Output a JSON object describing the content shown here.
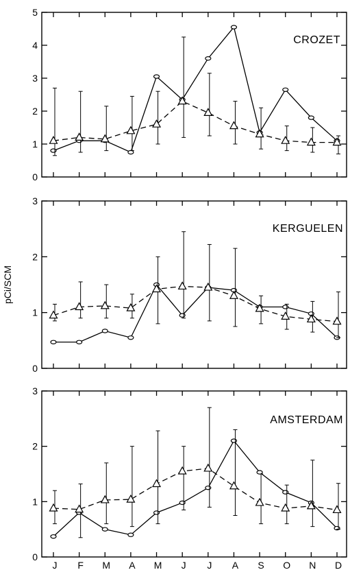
{
  "chart_data": [
    {
      "type": "line",
      "panel_label": "CROZET",
      "categories": [
        "J",
        "F",
        "M",
        "A",
        "M",
        "J",
        "J",
        "A",
        "S",
        "O",
        "N",
        "D"
      ],
      "ylim": [
        0,
        5
      ],
      "yticks": [
        0,
        1,
        2,
        3,
        4,
        5
      ],
      "series": [
        {
          "style": "solid-circle",
          "values": [
            0.8,
            1.1,
            1.1,
            0.75,
            3.05,
            2.35,
            3.6,
            4.55,
            1.35,
            2.65,
            1.8,
            1.1
          ]
        },
        {
          "style": "dashed-triangle",
          "values": [
            1.1,
            1.2,
            1.15,
            1.4,
            1.6,
            2.3,
            1.95,
            1.55,
            1.3,
            1.1,
            1.05,
            1.05
          ],
          "err_low": [
            0.65,
            0.75,
            0.8,
            0.8,
            1.0,
            1.2,
            1.25,
            1.0,
            0.85,
            0.8,
            0.75,
            0.7
          ],
          "err_high": [
            2.7,
            2.6,
            2.15,
            2.45,
            2.6,
            4.25,
            3.15,
            2.3,
            2.1,
            1.55,
            1.5,
            1.25
          ]
        }
      ]
    },
    {
      "type": "line",
      "panel_label": "KERGUELEN",
      "categories": [
        "J",
        "F",
        "M",
        "A",
        "M",
        "J",
        "J",
        "A",
        "S",
        "O",
        "N",
        "D"
      ],
      "ylim": [
        0,
        3
      ],
      "yticks": [
        0,
        1,
        2,
        3
      ],
      "series": [
        {
          "style": "solid-circle",
          "values": [
            0.47,
            0.47,
            0.67,
            0.55,
            1.5,
            0.95,
            1.45,
            1.4,
            1.1,
            1.1,
            0.98,
            0.55
          ]
        },
        {
          "style": "dashed-triangle",
          "values": [
            0.95,
            1.1,
            1.12,
            1.08,
            1.42,
            1.47,
            1.45,
            1.3,
            1.07,
            0.93,
            0.88,
            0.84
          ],
          "err_low": [
            0.85,
            0.9,
            0.9,
            0.9,
            0.8,
            0.9,
            0.85,
            0.75,
            0.8,
            0.7,
            0.65,
            0.55
          ],
          "err_high": [
            1.15,
            1.55,
            1.5,
            1.33,
            2.0,
            2.45,
            2.22,
            2.15,
            1.3,
            1.15,
            1.2,
            1.37
          ]
        }
      ]
    },
    {
      "type": "line",
      "panel_label": "AMSTERDAM",
      "categories": [
        "J",
        "F",
        "M",
        "A",
        "M",
        "J",
        "J",
        "A",
        "S",
        "O",
        "N",
        "D"
      ],
      "ylim": [
        0,
        3
      ],
      "yticks": [
        0,
        1,
        2,
        3
      ],
      "series": [
        {
          "style": "solid-circle",
          "values": [
            0.37,
            0.8,
            0.5,
            0.4,
            0.8,
            0.98,
            1.25,
            2.1,
            1.53,
            1.17,
            0.98,
            0.52
          ]
        },
        {
          "style": "dashed-triangle",
          "values": [
            0.88,
            0.86,
            1.03,
            1.04,
            1.32,
            1.55,
            1.6,
            1.28,
            0.98,
            0.88,
            0.92,
            0.85
          ],
          "err_low": [
            0.6,
            0.35,
            0.6,
            0.55,
            0.6,
            0.85,
            0.9,
            0.75,
            0.6,
            0.6,
            0.55,
            0.5
          ],
          "err_high": [
            1.2,
            1.32,
            1.7,
            2.0,
            2.28,
            2.0,
            2.7,
            2.3,
            1.5,
            1.3,
            1.75,
            1.33
          ]
        }
      ]
    }
  ],
  "shared": {
    "ylabel": "pCi/SCM",
    "x_ticks": [
      "J",
      "F",
      "M",
      "A",
      "M",
      "J",
      "J",
      "A",
      "S",
      "O",
      "N",
      "D"
    ]
  }
}
